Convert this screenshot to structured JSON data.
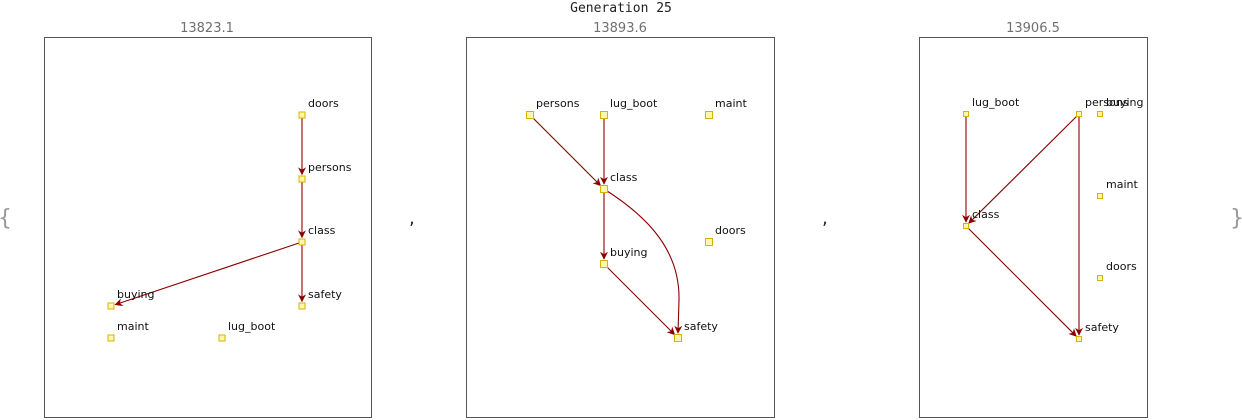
{
  "title": "Generation 25",
  "open_brace": "{",
  "close_brace": "}",
  "separator": ",",
  "colors": {
    "edge": "#8b0000",
    "node_fill": "#fff6b0",
    "node_stroke": "#d8b200",
    "frame": "#555555",
    "score_text": "#707070"
  },
  "graphs": [
    {
      "score": "13823.1",
      "nodes": [
        "doors",
        "persons",
        "class",
        "buying",
        "safety",
        "maint",
        "lug_boot"
      ],
      "edges": [
        {
          "from": "doors",
          "to": "persons"
        },
        {
          "from": "persons",
          "to": "class"
        },
        {
          "from": "class",
          "to": "buying"
        },
        {
          "from": "class",
          "to": "safety"
        }
      ]
    },
    {
      "score": "13893.6",
      "nodes": [
        "persons",
        "lug_boot",
        "maint",
        "class",
        "doors",
        "buying",
        "safety"
      ],
      "edges": [
        {
          "from": "persons",
          "to": "class"
        },
        {
          "from": "lug_boot",
          "to": "class"
        },
        {
          "from": "class",
          "to": "buying"
        },
        {
          "from": "class",
          "to": "safety"
        },
        {
          "from": "buying",
          "to": "safety"
        }
      ]
    },
    {
      "score": "13906.5",
      "nodes": [
        "lug_boot",
        "persons",
        "buying",
        "maint",
        "class",
        "doors",
        "safety"
      ],
      "edges": [
        {
          "from": "lug_boot",
          "to": "class"
        },
        {
          "from": "persons",
          "to": "class"
        },
        {
          "from": "persons",
          "to": "safety"
        },
        {
          "from": "class",
          "to": "safety"
        }
      ]
    }
  ]
}
